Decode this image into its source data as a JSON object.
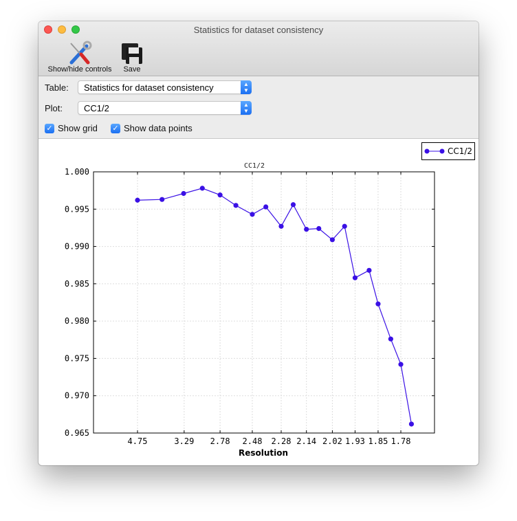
{
  "window": {
    "title": "Statistics for dataset consistency"
  },
  "toolbar": {
    "show_hide_label": "Show/hide controls",
    "save_label": "Save"
  },
  "controls": {
    "table_label": "Table:",
    "table_value": "Statistics for dataset consistency",
    "plot_label": "Plot:",
    "plot_value": "CC1/2",
    "show_grid_label": "Show grid",
    "show_grid_checked": true,
    "show_points_label": "Show data points",
    "show_points_checked": true
  },
  "colors": {
    "series": "#3a10e5",
    "accent": "#1b6ff2"
  },
  "chart_data": {
    "type": "line",
    "title": "CC1/2",
    "xlabel": "Resolution",
    "ylabel": "",
    "x_scale": "reciprocal-square (1/d^2), labelled as resolution",
    "ylim": [
      0.965,
      1.0
    ],
    "yticks": [
      "0.965",
      "0.970",
      "0.975",
      "0.980",
      "0.985",
      "0.990",
      "0.995",
      "1.000"
    ],
    "xticks": [
      "4.75",
      "3.29",
      "2.78",
      "2.48",
      "2.28",
      "2.14",
      "2.02",
      "1.93",
      "1.85",
      "1.78"
    ],
    "grid": true,
    "legend": "top-right",
    "series": [
      {
        "name": "CC1/2",
        "x": [
          4.75,
          3.79,
          3.3,
          3.0,
          2.78,
          2.62,
          2.48,
          2.38,
          2.28,
          2.21,
          2.14,
          2.08,
          2.02,
          1.97,
          1.93,
          1.88,
          1.85,
          1.81,
          1.78,
          1.75
        ],
        "values": [
          0.9962,
          0.9963,
          0.9971,
          0.9978,
          0.9969,
          0.9955,
          0.9943,
          0.9953,
          0.9927,
          0.9956,
          0.9923,
          0.9924,
          0.9909,
          0.9927,
          0.9858,
          0.9868,
          0.9823,
          0.9776,
          0.9742,
          0.9662
        ]
      }
    ]
  }
}
